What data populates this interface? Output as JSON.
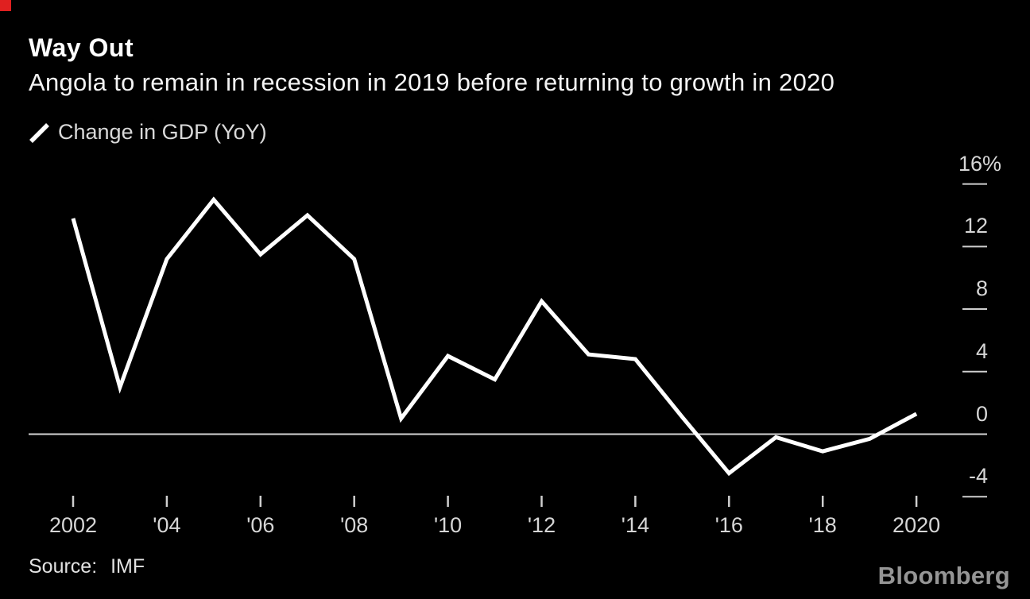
{
  "header": {
    "title": "Way Out",
    "subtitle": "Angola to remain in recession in 2019 before returning to growth in 2020"
  },
  "legend": {
    "label": "Change in GDP (YoY)",
    "swatch": "diagonal-line-icon"
  },
  "footer": {
    "source": "Source: IMF",
    "brand": "Bloomberg"
  },
  "colors": {
    "background": "#000000",
    "series_line": "#ffffff",
    "zero_line": "#d4d4d4",
    "tick": "#cfcfcf",
    "axis_text": "#d6d6d6",
    "corner_marker": "#e02020"
  },
  "chart_data": {
    "type": "line",
    "title": "Way Out",
    "subtitle": "Angola to remain in recession in 2019 before returning to growth in 2020",
    "xlabel": "",
    "ylabel": "Change in GDP (YoY), %",
    "legend_position": "top-left",
    "grid": false,
    "ylim": [
      -5.5,
      17
    ],
    "xlim": [
      2001,
      2021
    ],
    "series": [
      {
        "name": "Change in GDP (YoY)",
        "x": [
          2002,
          2003,
          2004,
          2005,
          2006,
          2007,
          2008,
          2009,
          2010,
          2011,
          2012,
          2013,
          2014,
          2015,
          2016,
          2017,
          2018,
          2019,
          2020
        ],
        "values": [
          13.8,
          3.0,
          11.2,
          15.0,
          11.5,
          14.0,
          11.2,
          1.0,
          5.0,
          3.5,
          8.5,
          5.1,
          4.8,
          1.1,
          -2.5,
          -0.2,
          -1.1,
          -0.3,
          1.3
        ]
      }
    ],
    "y_ticks": [
      {
        "value": 16,
        "label": "16%"
      },
      {
        "value": 12,
        "label": "12"
      },
      {
        "value": 8,
        "label": "8"
      },
      {
        "value": 4,
        "label": "4"
      },
      {
        "value": 0,
        "label": "0"
      },
      {
        "value": -4,
        "label": "-4"
      }
    ],
    "x_ticks": [
      {
        "value": 2002,
        "label": "2002"
      },
      {
        "value": 2004,
        "label": "'04"
      },
      {
        "value": 2006,
        "label": "'06"
      },
      {
        "value": 2008,
        "label": "'08"
      },
      {
        "value": 2010,
        "label": "'10"
      },
      {
        "value": 2012,
        "label": "'12"
      },
      {
        "value": 2014,
        "label": "'14"
      },
      {
        "value": 2016,
        "label": "'16"
      },
      {
        "value": 2018,
        "label": "'18"
      },
      {
        "value": 2020,
        "label": "2020"
      }
    ],
    "source": "IMF"
  }
}
